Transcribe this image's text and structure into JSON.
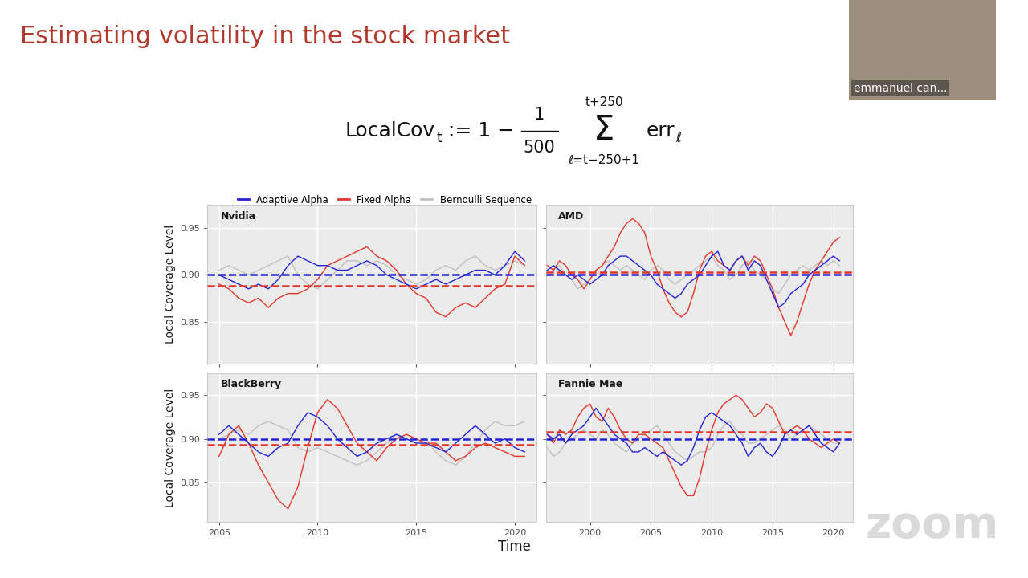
{
  "title": "Estimating volatility in the stock market",
  "formula": {
    "name": "LocalCov",
    "name_sub": "t",
    "equals": ":= 1 −",
    "numerator": "1",
    "denominator": "500",
    "sum": "Σ",
    "sum_top": "t+250",
    "sum_bottom": "ℓ=t−250+1",
    "term": "err",
    "term_sub": "ℓ"
  },
  "presenter": "emmanuel can...",
  "watermark": "zoom",
  "xlabel": "Time",
  "legend": "upper left",
  "chart_data": [
    {
      "type": "line",
      "title": "Nvidia",
      "ylabel": "Local Coverage Level",
      "grid": true,
      "tick_labels": "y",
      "xlim": [
        2004.4,
        2021.1
      ],
      "xticks": [
        2005,
        2010,
        2015,
        2020
      ],
      "ylim": [
        0.805,
        0.975
      ],
      "yticks": [
        0.85,
        {
          "value": 0.9,
          "label": "0.90"
        },
        0.95
      ],
      "x": [
        2005,
        2005.5,
        2006,
        2006.5,
        2007,
        2007.5,
        2008,
        2008.5,
        2009,
        2009.5,
        2010,
        2010.5,
        2011,
        2011.5,
        2012,
        2012.5,
        2013,
        2013.5,
        2014,
        2014.5,
        2015,
        2015.5,
        2016,
        2016.5,
        2017,
        2017.5,
        2018,
        2018.5,
        2019,
        2019.5,
        2020,
        2020.5
      ],
      "series": [
        {
          "name": "Adaptive Alpha",
          "color": "#2323d4",
          "line_style": "solid",
          "values": [
            0.9,
            0.895,
            0.89,
            0.885,
            0.89,
            0.885,
            0.895,
            0.91,
            0.92,
            0.915,
            0.91,
            0.91,
            0.905,
            0.905,
            0.91,
            0.915,
            0.91,
            0.9,
            0.895,
            0.89,
            0.885,
            0.89,
            0.895,
            0.89,
            0.895,
            0.9,
            0.905,
            0.905,
            0.9,
            0.91,
            0.925,
            0.915
          ]
        },
        {
          "name": "Fixed Alpha",
          "color": "#e2372b",
          "line_style": "solid",
          "values": [
            0.89,
            0.885,
            0.875,
            0.87,
            0.875,
            0.865,
            0.875,
            0.88,
            0.88,
            0.885,
            0.895,
            0.91,
            0.915,
            0.92,
            0.925,
            0.93,
            0.92,
            0.915,
            0.905,
            0.89,
            0.88,
            0.875,
            0.86,
            0.855,
            0.865,
            0.87,
            0.865,
            0.875,
            0.885,
            0.89,
            0.92,
            0.91
          ]
        },
        {
          "name": "Bernoulli Sequence",
          "color": "#c0c0c0",
          "line_style": "solid",
          "values": [
            0.905,
            0.91,
            0.905,
            0.9,
            0.905,
            0.91,
            0.915,
            0.92,
            0.9,
            0.89,
            0.885,
            0.895,
            0.905,
            0.915,
            0.915,
            0.91,
            0.915,
            0.91,
            0.9,
            0.895,
            0.89,
            0.895,
            0.905,
            0.91,
            0.905,
            0.915,
            0.92,
            0.91,
            0.905,
            0.91,
            0.915,
            0.91
          ]
        }
      ],
      "reference_lines": [
        {
          "value": 0.9,
          "color": "#2323d4",
          "line_style": "dashed"
        },
        {
          "value": 0.888,
          "color": "#e2372b",
          "line_style": "dashed"
        }
      ]
    },
    {
      "type": "line",
      "title": "AMD",
      "grid": true,
      "tick_labels": false,
      "xlim": [
        1996.4,
        2021.6
      ],
      "xticks": [
        2000,
        2005,
        2010,
        2015,
        2020
      ],
      "ylim": [
        0.805,
        0.975
      ],
      "yticks": [
        0.85,
        {
          "value": 0.9,
          "label": "0.90"
        },
        0.95
      ],
      "x": [
        1996.5,
        1997,
        1997.5,
        1998,
        1998.5,
        1999,
        1999.5,
        2000,
        2000.5,
        2001,
        2001.5,
        2002,
        2002.5,
        2003,
        2003.5,
        2004,
        2004.5,
        2005,
        2005.5,
        2006,
        2006.5,
        2007,
        2007.5,
        2008,
        2008.5,
        2009,
        2009.5,
        2010,
        2010.5,
        2011,
        2011.5,
        2012,
        2012.5,
        2013,
        2013.5,
        2014,
        2014.5,
        2015,
        2015.5,
        2016,
        2016.5,
        2017,
        2017.5,
        2018,
        2018.5,
        2019,
        2019.5,
        2020,
        2020.5
      ],
      "series": [
        {
          "name": "Adaptive Alpha",
          "color": "#2323d4",
          "line_style": "solid",
          "values": [
            0.905,
            0.91,
            0.905,
            0.9,
            0.895,
            0.9,
            0.895,
            0.89,
            0.895,
            0.9,
            0.91,
            0.915,
            0.92,
            0.92,
            0.915,
            0.91,
            0.905,
            0.9,
            0.89,
            0.885,
            0.88,
            0.875,
            0.88,
            0.89,
            0.895,
            0.9,
            0.91,
            0.92,
            0.925,
            0.91,
            0.905,
            0.915,
            0.92,
            0.905,
            0.915,
            0.91,
            0.895,
            0.88,
            0.865,
            0.87,
            0.88,
            0.885,
            0.89,
            0.9,
            0.905,
            0.91,
            0.915,
            0.92,
            0.915
          ]
        },
        {
          "name": "Fixed Alpha",
          "color": "#e2372b",
          "line_style": "solid",
          "values": [
            0.91,
            0.905,
            0.915,
            0.91,
            0.9,
            0.895,
            0.885,
            0.895,
            0.905,
            0.91,
            0.92,
            0.93,
            0.945,
            0.955,
            0.96,
            0.955,
            0.945,
            0.92,
            0.905,
            0.885,
            0.87,
            0.86,
            0.855,
            0.86,
            0.88,
            0.905,
            0.92,
            0.925,
            0.915,
            0.91,
            0.905,
            0.915,
            0.92,
            0.91,
            0.92,
            0.915,
            0.9,
            0.885,
            0.865,
            0.85,
            0.835,
            0.85,
            0.87,
            0.89,
            0.905,
            0.915,
            0.925,
            0.935,
            0.94
          ]
        },
        {
          "name": "Bernoulli Sequence",
          "color": "#c0c0c0",
          "line_style": "solid",
          "values": [
            0.91,
            0.905,
            0.91,
            0.9,
            0.895,
            0.885,
            0.89,
            0.895,
            0.905,
            0.91,
            0.915,
            0.91,
            0.905,
            0.91,
            0.905,
            0.9,
            0.895,
            0.905,
            0.91,
            0.905,
            0.895,
            0.89,
            0.895,
            0.9,
            0.905,
            0.91,
            0.915,
            0.92,
            0.91,
            0.905,
            0.895,
            0.9,
            0.91,
            0.915,
            0.905,
            0.9,
            0.895,
            0.885,
            0.88,
            0.89,
            0.9,
            0.905,
            0.91,
            0.905,
            0.91,
            0.915,
            0.91,
            0.915,
            0.91
          ]
        }
      ],
      "reference_lines": [
        {
          "value": 0.9,
          "color": "#2323d4",
          "line_style": "dashed"
        },
        {
          "value": 0.903,
          "color": "#e2372b",
          "line_style": "dashed"
        }
      ]
    },
    {
      "type": "line",
      "title": "BlackBerry",
      "ylabel": "Local Coverage Level",
      "grid": true,
      "tick_labels": true,
      "xlim": [
        2004.4,
        2021.1
      ],
      "xticks": [
        2005,
        2010,
        2015,
        2020
      ],
      "ylim": [
        0.805,
        0.975
      ],
      "yticks": [
        0.85,
        {
          "value": 0.9,
          "label": "0.90"
        },
        0.95
      ],
      "x": [
        2005,
        2005.5,
        2006,
        2006.5,
        2007,
        2007.5,
        2008,
        2008.5,
        2009,
        2009.5,
        2010,
        2010.5,
        2011,
        2011.5,
        2012,
        2012.5,
        2013,
        2013.5,
        2014,
        2014.5,
        2015,
        2015.5,
        2016,
        2016.5,
        2017,
        2017.5,
        2018,
        2018.5,
        2019,
        2019.5,
        2020,
        2020.5
      ],
      "series": [
        {
          "name": "Adaptive Alpha",
          "color": "#2323d4",
          "line_style": "solid",
          "values": [
            0.905,
            0.915,
            0.905,
            0.895,
            0.885,
            0.88,
            0.89,
            0.895,
            0.915,
            0.93,
            0.925,
            0.915,
            0.9,
            0.89,
            0.88,
            0.885,
            0.895,
            0.9,
            0.905,
            0.9,
            0.895,
            0.895,
            0.89,
            0.885,
            0.895,
            0.905,
            0.915,
            0.905,
            0.895,
            0.9,
            0.89,
            0.885
          ]
        },
        {
          "name": "Fixed Alpha",
          "color": "#e2372b",
          "line_style": "solid",
          "values": [
            0.88,
            0.905,
            0.915,
            0.895,
            0.87,
            0.85,
            0.83,
            0.82,
            0.845,
            0.89,
            0.93,
            0.945,
            0.935,
            0.915,
            0.895,
            0.885,
            0.875,
            0.89,
            0.9,
            0.905,
            0.9,
            0.895,
            0.895,
            0.885,
            0.875,
            0.88,
            0.89,
            0.895,
            0.89,
            0.885,
            0.88,
            0.88
          ]
        },
        {
          "name": "Bernoulli Sequence",
          "color": "#c0c0c0",
          "line_style": "solid",
          "values": [
            0.9,
            0.905,
            0.91,
            0.905,
            0.915,
            0.92,
            0.915,
            0.91,
            0.89,
            0.885,
            0.89,
            0.885,
            0.88,
            0.875,
            0.87,
            0.875,
            0.885,
            0.895,
            0.905,
            0.9,
            0.895,
            0.9,
            0.885,
            0.875,
            0.87,
            0.88,
            0.895,
            0.91,
            0.92,
            0.915,
            0.915,
            0.92
          ]
        }
      ],
      "reference_lines": [
        {
          "value": 0.9,
          "color": "#2323d4",
          "line_style": "dashed"
        },
        {
          "value": 0.893,
          "color": "#e2372b",
          "line_style": "dashed"
        }
      ]
    },
    {
      "type": "line",
      "title": "Fannie Mae",
      "grid": true,
      "tick_labels": "x",
      "xlim": [
        1996.4,
        2021.6
      ],
      "xticks": [
        2000,
        2005,
        2010,
        2015,
        2020
      ],
      "ylim": [
        0.805,
        0.975
      ],
      "yticks": [
        0.85,
        {
          "value": 0.9,
          "label": "0.90"
        },
        0.95
      ],
      "x": [
        1996.5,
        1997,
        1997.5,
        1998,
        1998.5,
        1999,
        1999.5,
        2000,
        2000.5,
        2001,
        2001.5,
        2002,
        2002.5,
        2003,
        2003.5,
        2004,
        2004.5,
        2005,
        2005.5,
        2006,
        2006.5,
        2007,
        2007.5,
        2008,
        2008.5,
        2009,
        2009.5,
        2010,
        2010.5,
        2011,
        2011.5,
        2012,
        2012.5,
        2013,
        2013.5,
        2014,
        2014.5,
        2015,
        2015.5,
        2016,
        2016.5,
        2017,
        2017.5,
        2018,
        2018.5,
        2019,
        2019.5,
        2020,
        2020.5
      ],
      "series": [
        {
          "name": "Adaptive Alpha",
          "color": "#2323d4",
          "line_style": "solid",
          "values": [
            0.905,
            0.9,
            0.905,
            0.895,
            0.905,
            0.91,
            0.915,
            0.925,
            0.935,
            0.925,
            0.915,
            0.905,
            0.9,
            0.895,
            0.885,
            0.885,
            0.89,
            0.885,
            0.88,
            0.885,
            0.88,
            0.875,
            0.87,
            0.875,
            0.89,
            0.91,
            0.925,
            0.93,
            0.925,
            0.92,
            0.915,
            0.905,
            0.895,
            0.88,
            0.89,
            0.895,
            0.885,
            0.88,
            0.89,
            0.905,
            0.91,
            0.905,
            0.91,
            0.915,
            0.905,
            0.895,
            0.89,
            0.885,
            0.895
          ]
        },
        {
          "name": "Fixed Alpha",
          "color": "#e2372b",
          "line_style": "solid",
          "values": [
            0.905,
            0.895,
            0.91,
            0.905,
            0.91,
            0.925,
            0.935,
            0.94,
            0.925,
            0.92,
            0.935,
            0.925,
            0.91,
            0.9,
            0.895,
            0.905,
            0.905,
            0.9,
            0.895,
            0.89,
            0.875,
            0.86,
            0.845,
            0.835,
            0.835,
            0.855,
            0.885,
            0.91,
            0.93,
            0.94,
            0.945,
            0.95,
            0.945,
            0.935,
            0.925,
            0.93,
            0.94,
            0.935,
            0.92,
            0.905,
            0.91,
            0.915,
            0.91,
            0.9,
            0.895,
            0.89,
            0.895,
            0.9,
            0.895
          ]
        },
        {
          "name": "Bernoulli Sequence",
          "color": "#c0c0c0",
          "line_style": "solid",
          "values": [
            0.89,
            0.88,
            0.885,
            0.895,
            0.9,
            0.905,
            0.91,
            0.905,
            0.9,
            0.91,
            0.905,
            0.895,
            0.89,
            0.885,
            0.895,
            0.9,
            0.905,
            0.91,
            0.915,
            0.905,
            0.895,
            0.885,
            0.88,
            0.875,
            0.88,
            0.885,
            0.885,
            0.89,
            0.905,
            0.915,
            0.92,
            0.91,
            0.905,
            0.895,
            0.895,
            0.9,
            0.905,
            0.91,
            0.915,
            0.91,
            0.9,
            0.905,
            0.91,
            0.915,
            0.91,
            0.905,
            0.9,
            0.895,
            0.895
          ]
        }
      ],
      "reference_lines": [
        {
          "value": 0.9,
          "color": "#2323d4",
          "line_style": "dashed"
        },
        {
          "value": 0.908,
          "color": "#e2372b",
          "line_style": "dashed"
        }
      ]
    }
  ]
}
